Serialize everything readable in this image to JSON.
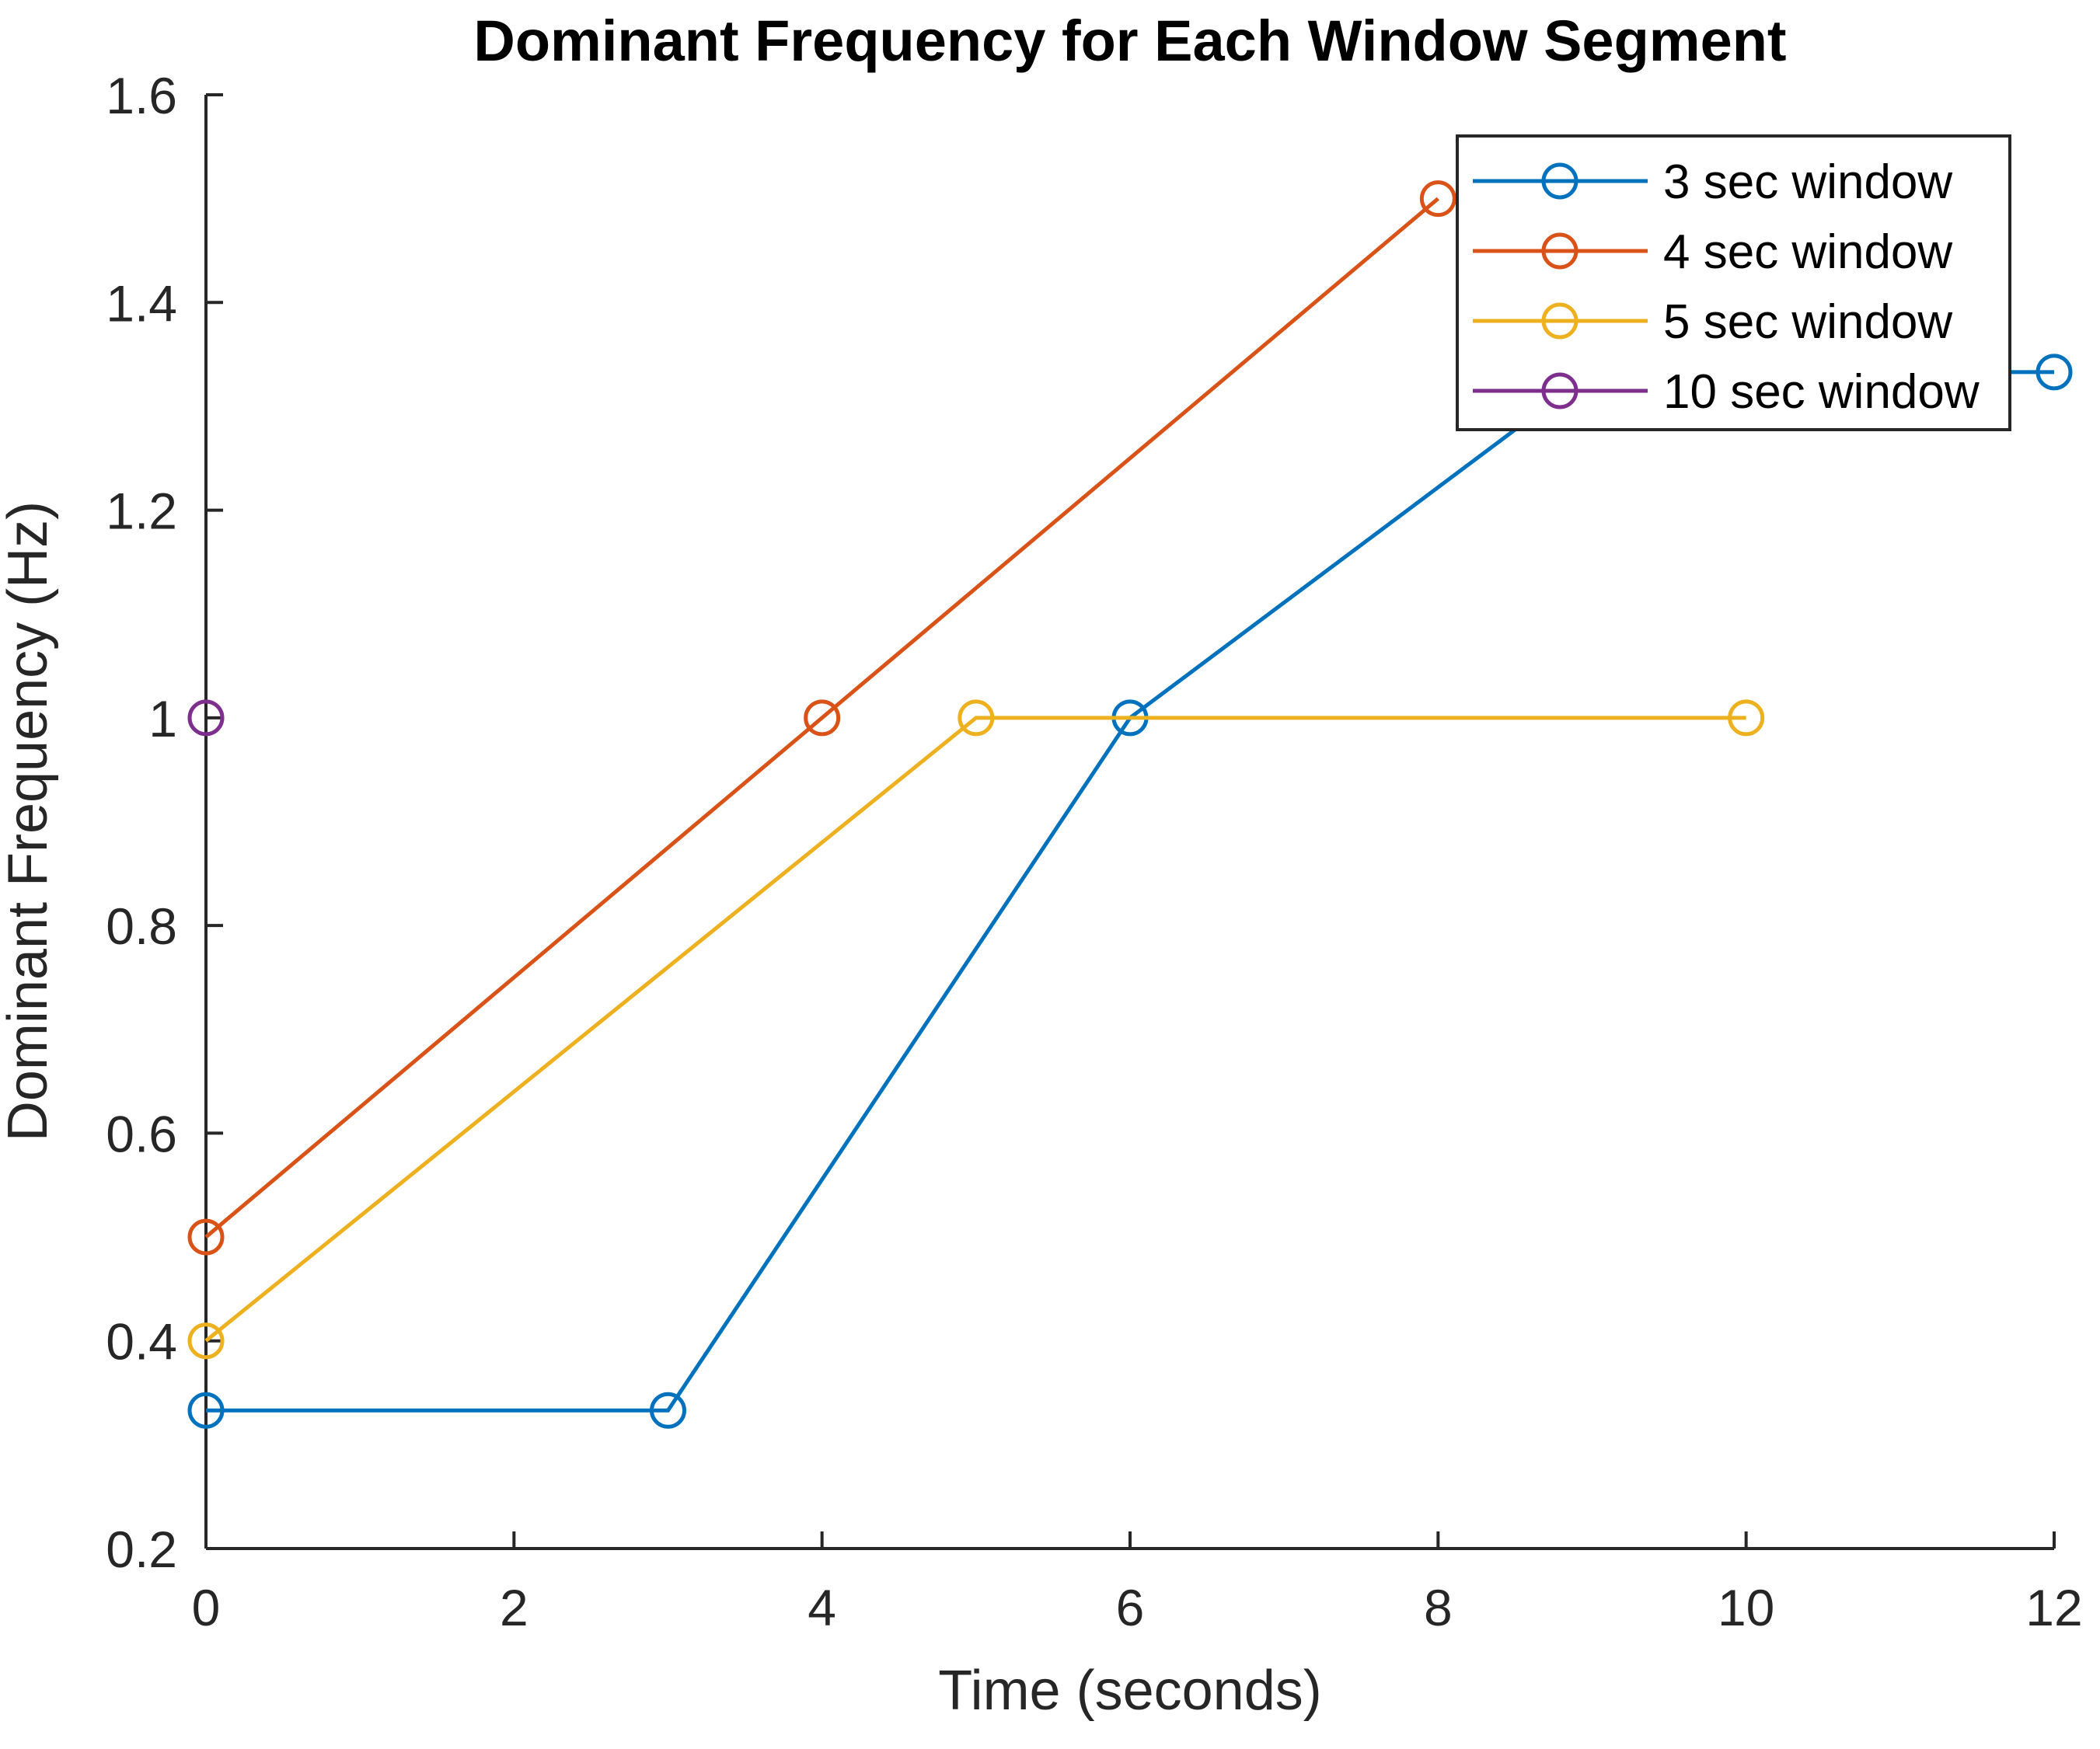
{
  "chart_data": {
    "type": "line",
    "title": "Dominant Frequency for Each Window Segment",
    "xlabel": "Time (seconds)",
    "ylabel": "Dominant Frequency (Hz)",
    "xlim": [
      0,
      12
    ],
    "ylim": [
      0.2,
      1.6
    ],
    "x_ticks": [
      0,
      2,
      4,
      6,
      8,
      10,
      12
    ],
    "y_ticks": [
      0.2,
      0.4,
      0.6,
      0.8,
      1,
      1.2,
      1.4,
      1.6
    ],
    "grid": false,
    "tick_direction": "in",
    "box": false,
    "axis_color": "#262626",
    "title_color": "#000000",
    "background_color": "#ffffff",
    "legend": {
      "position": "top-right-inside",
      "border_color": "#262626",
      "background_color": "#ffffff"
    },
    "series": [
      {
        "name": "3 sec window",
        "color": "#0072BD",
        "marker": "circle",
        "x": [
          0,
          3,
          6,
          9,
          12
        ],
        "y": [
          0.333,
          0.333,
          1,
          1.333,
          1.333
        ]
      },
      {
        "name": "4 sec window",
        "color": "#D95319",
        "marker": "circle",
        "x": [
          0,
          4,
          8
        ],
        "y": [
          0.5,
          1,
          1.5
        ]
      },
      {
        "name": "5 sec window",
        "color": "#EDB120",
        "marker": "circle",
        "x": [
          0,
          5,
          10
        ],
        "y": [
          0.4,
          1,
          1
        ]
      },
      {
        "name": "10 sec window",
        "color": "#7E2F8E",
        "marker": "circle",
        "x": [
          0
        ],
        "y": [
          1
        ]
      }
    ]
  }
}
